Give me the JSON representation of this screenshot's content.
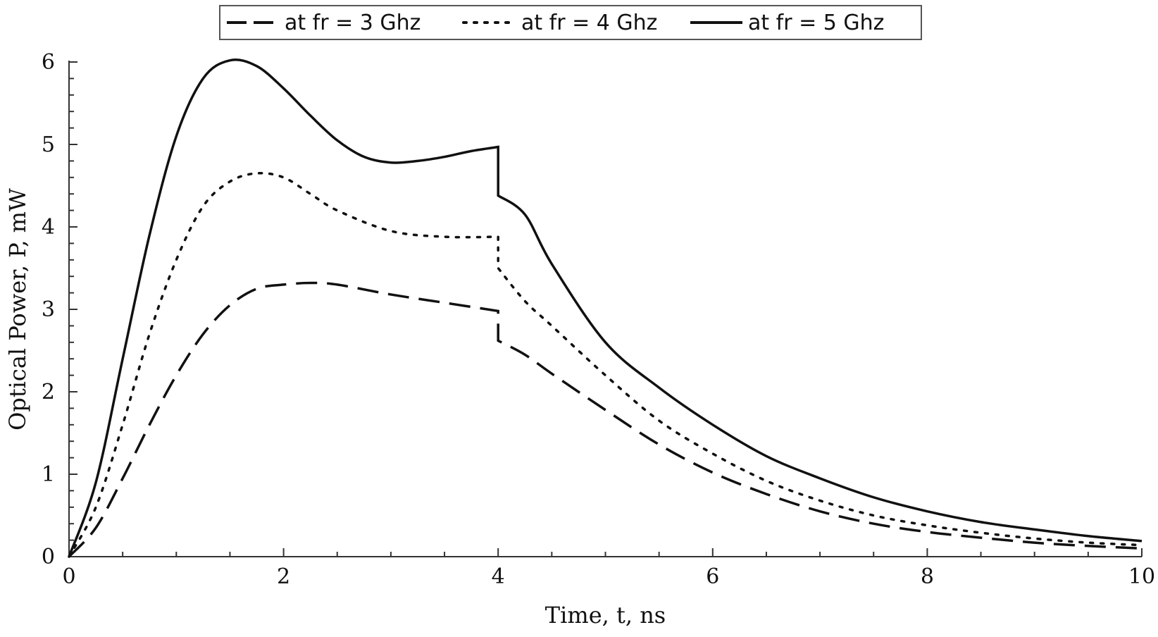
{
  "chart_data": {
    "type": "line",
    "title": "",
    "xlabel": "Time, t, ns",
    "ylabel": "Optical Power, P, mW",
    "xlim": [
      0,
      10
    ],
    "ylim": [
      0,
      6
    ],
    "x_ticks": [
      "0",
      "2",
      "4",
      "6",
      "8",
      "10"
    ],
    "y_ticks": [
      "0",
      "1",
      "2",
      "3",
      "4",
      "5",
      "6"
    ],
    "grid": false,
    "legend_position": "top-center",
    "line_color": "#111111",
    "series": [
      {
        "name": "at fr = 3 Ghz",
        "style": "dashed",
        "x": [
          0,
          0.25,
          0.5,
          0.75,
          1,
          1.25,
          1.5,
          1.75,
          2,
          2.25,
          2.5,
          3,
          3.5,
          4,
          4.0001,
          4.25,
          4.5,
          5,
          5.5,
          6,
          6.5,
          7,
          7.5,
          8,
          8.5,
          9,
          9.5,
          10
        ],
        "y": [
          0,
          0.35,
          0.95,
          1.6,
          2.2,
          2.7,
          3.05,
          3.25,
          3.3,
          3.32,
          3.3,
          3.18,
          3.08,
          2.98,
          2.62,
          2.45,
          2.22,
          1.78,
          1.36,
          1.02,
          0.76,
          0.55,
          0.4,
          0.3,
          0.23,
          0.17,
          0.13,
          0.1
        ]
      },
      {
        "name": "at fr = 4 Ghz",
        "style": "dotted",
        "x": [
          0,
          0.25,
          0.5,
          0.75,
          1,
          1.25,
          1.5,
          1.75,
          2,
          2.25,
          2.5,
          3,
          3.5,
          4,
          4.0001,
          4.25,
          4.5,
          5,
          5.5,
          6,
          6.5,
          7,
          7.5,
          8,
          8.5,
          9,
          9.5,
          10
        ],
        "y": [
          0,
          0.6,
          1.6,
          2.7,
          3.6,
          4.25,
          4.55,
          4.65,
          4.6,
          4.4,
          4.2,
          3.95,
          3.88,
          3.88,
          3.5,
          3.1,
          2.8,
          2.2,
          1.65,
          1.25,
          0.92,
          0.68,
          0.5,
          0.38,
          0.29,
          0.22,
          0.17,
          0.14
        ]
      },
      {
        "name": "at fr = 5 Ghz",
        "style": "solid",
        "x": [
          0,
          0.25,
          0.5,
          0.75,
          1,
          1.25,
          1.5,
          1.75,
          2,
          2.25,
          2.5,
          2.75,
          3,
          3.25,
          3.5,
          3.75,
          4,
          4.0001,
          4.25,
          4.5,
          5,
          5.5,
          6,
          6.5,
          7,
          7.5,
          8,
          8.5,
          9,
          9.5,
          10
        ],
        "y": [
          0,
          0.9,
          2.4,
          3.9,
          5.1,
          5.8,
          6.02,
          5.95,
          5.68,
          5.35,
          5.05,
          4.85,
          4.78,
          4.8,
          4.85,
          4.92,
          4.97,
          4.38,
          4.15,
          3.55,
          2.6,
          2.05,
          1.6,
          1.22,
          0.95,
          0.72,
          0.55,
          0.42,
          0.33,
          0.25,
          0.19
        ]
      }
    ]
  }
}
